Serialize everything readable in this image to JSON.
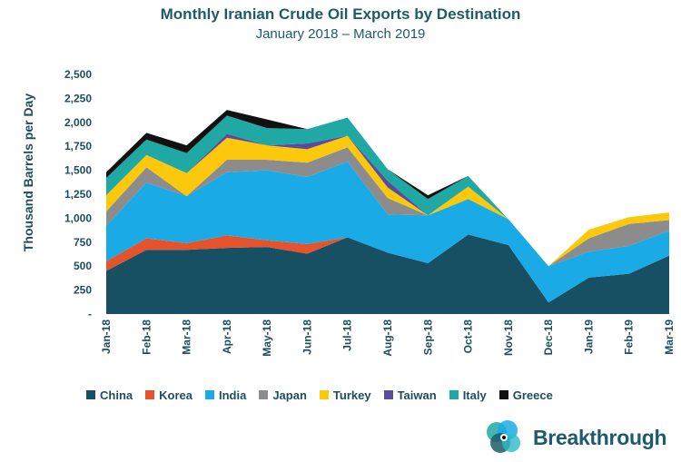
{
  "header": {
    "title": "Monthly Iranian Crude Oil Exports by Destination",
    "subtitle": "January 2018 – March 2019"
  },
  "logo": {
    "text": "Breakthrough",
    "icon": "breakthrough-logo-icon"
  },
  "colors": {
    "China": "#174f63",
    "Korea": "#e4532b",
    "India": "#1aabe6",
    "Japan": "#8c8c8c",
    "Turkey": "#fbc80c",
    "Taiwan": "#5b4b9b",
    "Italy": "#1fa8a4",
    "Greece": "#111111"
  },
  "chart_data": {
    "type": "area",
    "stacked": true,
    "ylabel": "Thousand Barrels per Day",
    "ylim": [
      0,
      2500
    ],
    "yticks": [
      "-",
      "250",
      "500",
      "750",
      "1,000",
      "1,250",
      "1,500",
      "1,750",
      "2,000",
      "2,250",
      "2,500"
    ],
    "categories": [
      "Jan-18",
      "Feb-18",
      "Mar-18",
      "Apr-18",
      "May-18",
      "Jun-18",
      "Jul-18",
      "Aug-18",
      "Sep-18",
      "Oct-18",
      "Nov-18",
      "Dec-18",
      "Jan-19",
      "Feb-19",
      "Mar-19"
    ],
    "legend_position": "bottom",
    "grid": false,
    "series": [
      {
        "name": "China",
        "values": [
          450,
          670,
          670,
          690,
          700,
          630,
          800,
          640,
          530,
          830,
          720,
          120,
          380,
          420,
          610
        ]
      },
      {
        "name": "Korea",
        "values": [
          100,
          120,
          70,
          130,
          70,
          100,
          0,
          0,
          0,
          0,
          0,
          0,
          0,
          0,
          0
        ]
      },
      {
        "name": "India",
        "values": [
          370,
          580,
          490,
          660,
          730,
          700,
          790,
          400,
          500,
          370,
          270,
          380,
          270,
          290,
          260
        ]
      },
      {
        "name": "Japan",
        "values": [
          150,
          160,
          0,
          130,
          110,
          150,
          150,
          170,
          0,
          0,
          0,
          0,
          140,
          230,
          110
        ]
      },
      {
        "name": "Turkey",
        "values": [
          170,
          130,
          240,
          230,
          150,
          140,
          120,
          110,
          0,
          130,
          0,
          0,
          90,
          70,
          80
        ]
      },
      {
        "name": "Taiwan",
        "values": [
          0,
          0,
          0,
          40,
          0,
          60,
          0,
          70,
          0,
          0,
          0,
          0,
          0,
          0,
          0
        ]
      },
      {
        "name": "Italy",
        "values": [
          180,
          160,
          210,
          190,
          180,
          150,
          190,
          120,
          170,
          110,
          0,
          0,
          0,
          0,
          0
        ]
      },
      {
        "name": "Greece",
        "values": [
          60,
          70,
          80,
          60,
          90,
          0,
          0,
          0,
          40,
          0,
          0,
          0,
          0,
          0,
          0
        ]
      }
    ]
  }
}
